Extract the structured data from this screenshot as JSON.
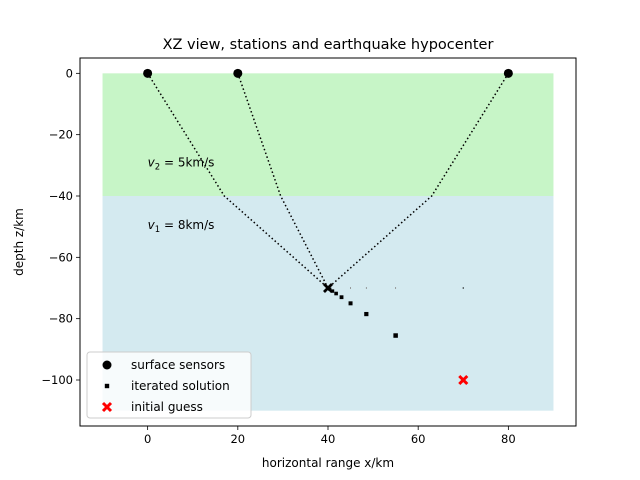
{
  "chart_data": {
    "type": "scatter",
    "title": "XZ view, stations and earthquake hypocenter",
    "xlabel": "horizontal range x/km",
    "ylabel": "depth z/km",
    "xlim": [
      -15,
      95
    ],
    "ylim": [
      -115,
      5
    ],
    "xticks": [
      0,
      20,
      40,
      60,
      80
    ],
    "yticks": [
      0,
      -20,
      -40,
      -60,
      -80,
      -100
    ],
    "grid": false,
    "legend_position": "lower-left",
    "layers": [
      {
        "name": "upper-layer",
        "color": "#c7f5c7",
        "x_range": [
          -10,
          90
        ],
        "z_range": [
          -40,
          0
        ]
      },
      {
        "name": "lower-layer",
        "color": "#d4eaf0",
        "x_range": [
          -10,
          90
        ],
        "z_range": [
          -110,
          -40
        ]
      }
    ],
    "annotations": [
      {
        "base": "v",
        "sub": "2",
        "rest": " = 5km/s",
        "x": 0,
        "y": -29
      },
      {
        "base": "v",
        "sub": "1",
        "rest": " = 8km/s",
        "x": 0,
        "y": -49.5
      }
    ],
    "series": [
      {
        "name": "surface sensors",
        "marker": "circle",
        "color": "#000000",
        "x": [
          0,
          20,
          80
        ],
        "y": [
          0,
          0,
          0
        ]
      },
      {
        "name": "iterated solution",
        "marker": "square",
        "color": "#000000",
        "x": [
          70,
          55,
          48.5,
          45,
          43,
          41.8,
          41,
          40.4,
          40.1,
          40
        ],
        "y": [
          -70,
          -85.5,
          -78.5,
          -75,
          -73,
          -71.8,
          -71,
          -70.4,
          -70.1,
          -70
        ],
        "sizes": [
          1.2,
          4.5,
          4.2,
          4,
          3.8,
          3.6,
          3.4,
          3.2,
          3,
          3
        ]
      },
      {
        "name": "initial guess",
        "marker": "x",
        "color": "#ff0000",
        "x": [
          70
        ],
        "y": [
          -100
        ]
      }
    ],
    "tiny_marks": [
      {
        "x": 45,
        "y": -70
      },
      {
        "x": 48.5,
        "y": -70
      },
      {
        "x": 55,
        "y": -70
      }
    ],
    "final_solution": {
      "x": 40,
      "y": -70,
      "color": "#000000"
    },
    "rays": [
      {
        "x": [
          0,
          17,
          40
        ],
        "y": [
          0,
          -40,
          -70
        ]
      },
      {
        "x": [
          20,
          29.5,
          40
        ],
        "y": [
          0,
          -40,
          -70
        ]
      },
      {
        "x": [
          80,
          63,
          40
        ],
        "y": [
          0,
          -40,
          -70
        ]
      }
    ]
  }
}
